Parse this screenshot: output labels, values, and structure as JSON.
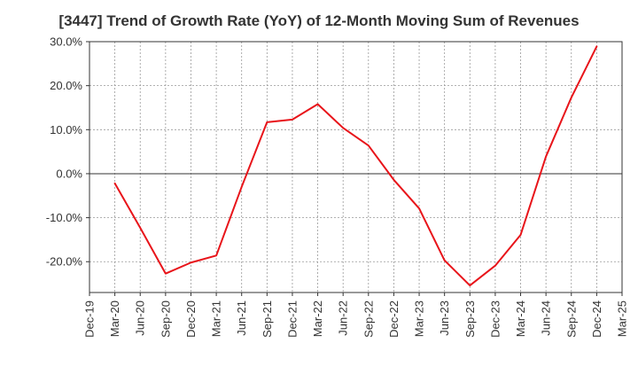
{
  "chart_data": {
    "type": "line",
    "title": "[3447]  Trend of Growth Rate (YoY) of 12-Month Moving Sum of Revenues",
    "xlabel": "",
    "ylabel": "",
    "x_tick_labels": [
      "Dec-19",
      "Mar-20",
      "Jun-20",
      "Sep-20",
      "Dec-20",
      "Mar-21",
      "Jun-21",
      "Sep-21",
      "Dec-21",
      "Mar-22",
      "Jun-22",
      "Sep-22",
      "Dec-22",
      "Mar-23",
      "Jun-23",
      "Sep-23",
      "Dec-23",
      "Mar-24",
      "Jun-24",
      "Sep-24",
      "Dec-24",
      "Mar-25"
    ],
    "y_ticks": [
      30,
      20,
      10,
      0,
      -10,
      -20
    ],
    "y_tick_labels": [
      "30.0%",
      "20.0%",
      "10.0%",
      "0.0%",
      "-10.0%",
      "-20.0%"
    ],
    "ylim": [
      -27,
      30
    ],
    "grid": true,
    "zero_line": true,
    "series": [
      {
        "color": "#e8141a",
        "x": [
          "Mar-20",
          "Jun-20",
          "Sep-20",
          "Dec-20",
          "Mar-21",
          "Jun-21",
          "Sep-21",
          "Dec-21",
          "Mar-22",
          "Jun-22",
          "Sep-22",
          "Dec-22",
          "Mar-23",
          "Jun-23",
          "Sep-23",
          "Dec-23",
          "Mar-24",
          "Jun-24",
          "Sep-24",
          "Dec-24"
        ],
        "values": [
          -2.2,
          -12.3,
          -22.7,
          -20.2,
          -18.6,
          -3.0,
          11.7,
          12.3,
          15.8,
          10.4,
          6.4,
          -1.4,
          -7.9,
          -19.7,
          -25.4,
          -20.9,
          -13.9,
          3.9,
          17.3,
          28.9
        ]
      }
    ]
  }
}
